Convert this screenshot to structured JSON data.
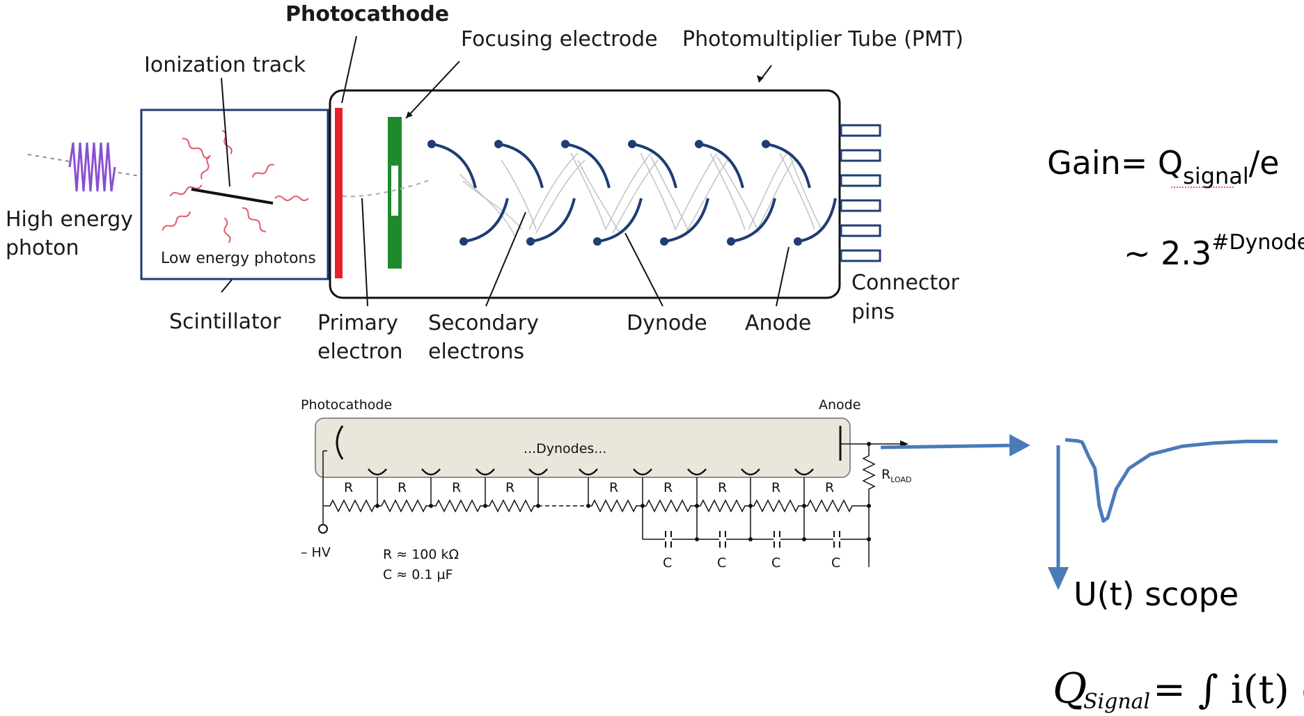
{
  "pmt_diagram": {
    "labels": {
      "photocathode": "Photocathode",
      "ionization_track": "Ionization track",
      "focusing_electrode": "Focusing electrode",
      "pmt": "Photomultiplier Tube (PMT)",
      "high_energy_line1": "High energy",
      "high_energy_line2": "photon",
      "low_energy_photons": "Low energy photons",
      "scintillator": "Scintillator",
      "primary_line1": "Primary",
      "primary_line2": "electron",
      "secondary_line1": "Secondary",
      "secondary_line2": "electrons",
      "dynode": "Dynode",
      "anode": "Anode",
      "connector_line1": "Connector",
      "connector_line2": "pins"
    },
    "colors": {
      "photocathode": "#e8202a",
      "focusing_electrode": "#1f8a2c",
      "dynode": "#1f3d73",
      "photon": "#8a4fd0",
      "low_photon": "#e35a6a",
      "electron_path": "#b8b8b8"
    }
  },
  "circuit": {
    "photocathode": "Photocathode",
    "anode": "Anode",
    "dynodes": "...Dynodes...",
    "resistor": "R",
    "capacitor": "C",
    "rload_main": "R",
    "rload_sub": "LOAD",
    "hv": "– HV",
    "r_value": "R ≈ 100 kΩ",
    "c_value": "C ≈ 0.1 µF",
    "tube_fill": "#e9e7db"
  },
  "equations": {
    "gain_prefix": "Gain= Q",
    "gain_sub": "signal",
    "gain_suffix": "/e",
    "approx_prefix": "~ 2.3",
    "approx_sup": "#Dynodes",
    "scope_label": "U(t)  scope",
    "q_main": "Q",
    "q_sub": "Signal",
    "q_rhs": "= ∫ i(t) dt"
  },
  "signal": {
    "color": "#4a7ab8",
    "trace": [
      [
        0,
        0
      ],
      [
        6,
        1.5
      ],
      [
        8,
        3
      ],
      [
        11,
        20
      ],
      [
        14,
        35
      ],
      [
        16,
        80
      ],
      [
        18,
        99
      ],
      [
        20,
        95
      ],
      [
        24,
        60
      ],
      [
        30,
        35
      ],
      [
        40,
        18
      ],
      [
        55,
        8
      ],
      [
        70,
        4
      ],
      [
        85,
        2
      ],
      [
        100,
        2
      ]
    ]
  }
}
